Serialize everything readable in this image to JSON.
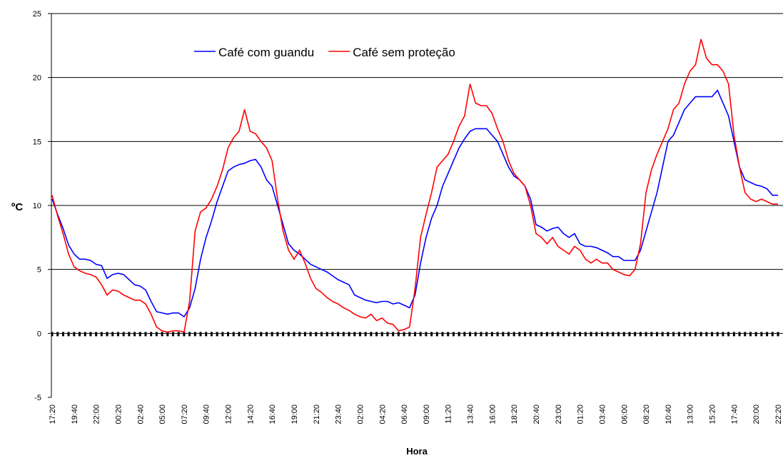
{
  "chart_data": {
    "type": "line",
    "ylabel": "ºC",
    "xlabel": "Hora",
    "ylim": [
      -5,
      25
    ],
    "yticks": [
      -5,
      0,
      5,
      10,
      15,
      20,
      25
    ],
    "grid": true,
    "legend": "top",
    "categories": [
      "17:20",
      null,
      null,
      null,
      "19:40",
      null,
      null,
      null,
      "22:00",
      null,
      null,
      null,
      "00:20",
      null,
      null,
      null,
      "02:40",
      null,
      null,
      null,
      "05:00",
      null,
      null,
      null,
      "07:20",
      null,
      null,
      null,
      "09:40",
      null,
      null,
      null,
      "12:00",
      null,
      null,
      null,
      "14:20",
      null,
      null,
      null,
      "16:40",
      null,
      null,
      null,
      "19:00",
      null,
      null,
      null,
      "21:20",
      null,
      null,
      null,
      "23:40",
      null,
      null,
      null,
      "02:00",
      null,
      null,
      null,
      "04:20",
      null,
      null,
      null,
      "06:40",
      null,
      null,
      null,
      "09:00",
      null,
      null,
      null,
      "11:20",
      null,
      null,
      null,
      "13:40",
      null,
      null,
      null,
      "16:00",
      null,
      null,
      null,
      "18:20",
      null,
      null,
      null,
      "20:40",
      null,
      null,
      null,
      "23:00",
      null,
      null,
      null,
      "01:20",
      null,
      null,
      null,
      "03:40",
      null,
      null,
      null,
      "06:00",
      null,
      null,
      null,
      "08:20",
      null,
      null,
      null,
      "10:40",
      null,
      null,
      null,
      "13:00",
      null,
      null,
      null,
      "15:20",
      null,
      null,
      null,
      "17:40",
      null,
      null,
      null,
      "20:00",
      null,
      null,
      null,
      "22:20"
    ],
    "series": [
      {
        "name": "Café com guandu",
        "color": "#0000ff",
        "values": [
          10.5,
          9.3,
          8.2,
          6.9,
          6.2,
          5.8,
          5.8,
          5.7,
          5.4,
          5.3,
          4.3,
          4.6,
          4.7,
          4.6,
          4.2,
          3.8,
          3.7,
          3.4,
          2.5,
          1.7,
          1.6,
          1.5,
          1.6,
          1.6,
          1.3,
          2.0,
          3.5,
          5.8,
          7.5,
          8.8,
          10.3,
          11.5,
          12.7,
          13.0,
          13.2,
          13.3,
          13.5,
          13.6,
          13.0,
          12.0,
          11.5,
          10.0,
          8.5,
          7.0,
          6.5,
          6.2,
          5.8,
          5.4,
          5.2,
          5.0,
          4.8,
          4.5,
          4.2,
          4.0,
          3.8,
          3.0,
          2.8,
          2.6,
          2.5,
          2.4,
          2.5,
          2.5,
          2.3,
          2.4,
          2.2,
          2.0,
          3.0,
          5.5,
          7.5,
          9.0,
          10.0,
          11.5,
          12.5,
          13.5,
          14.5,
          15.2,
          15.8,
          16.0,
          16.0,
          16.0,
          15.5,
          15.0,
          14.0,
          13.0,
          12.3,
          12.0,
          11.5,
          10.5,
          8.5,
          8.3,
          8.0,
          8.2,
          8.3,
          7.8,
          7.5,
          7.8,
          7.0,
          6.8,
          6.8,
          6.7,
          6.5,
          6.3,
          6.0,
          6.0,
          5.7,
          5.7,
          5.7,
          6.5,
          8.0,
          9.5,
          11.0,
          13.0,
          15.0,
          15.5,
          16.5,
          17.5,
          18.0,
          18.5,
          18.5,
          18.5,
          18.5,
          19.0,
          18.0,
          17.0,
          15.0,
          13.0,
          12.0,
          11.8,
          11.6,
          11.5,
          11.3,
          10.8,
          10.8
        ]
      },
      {
        "name": "Café sem proteção",
        "color": "#ff0000",
        "values": [
          10.8,
          9.2,
          7.8,
          6.2,
          5.2,
          4.9,
          4.7,
          4.6,
          4.4,
          3.8,
          3.0,
          3.4,
          3.3,
          3.0,
          2.8,
          2.6,
          2.6,
          2.3,
          1.5,
          0.5,
          0.2,
          0.1,
          0.2,
          0.2,
          0.1,
          2.5,
          8.0,
          9.5,
          9.8,
          10.5,
          11.5,
          12.8,
          14.5,
          15.3,
          15.8,
          17.5,
          15.8,
          15.6,
          15.0,
          14.5,
          13.5,
          10.5,
          8.0,
          6.5,
          5.8,
          6.5,
          5.5,
          4.3,
          3.5,
          3.2,
          2.8,
          2.5,
          2.3,
          2.0,
          1.8,
          1.5,
          1.3,
          1.2,
          1.5,
          1.0,
          1.2,
          0.8,
          0.7,
          0.2,
          0.3,
          0.5,
          3.5,
          7.5,
          9.3,
          11.0,
          13.0,
          13.5,
          14.0,
          15.0,
          16.2,
          17.0,
          19.5,
          18.0,
          17.8,
          17.8,
          17.2,
          16.0,
          15.0,
          13.5,
          12.5,
          12.0,
          11.5,
          10.0,
          7.8,
          7.5,
          7.0,
          7.5,
          6.8,
          6.5,
          6.2,
          6.8,
          6.5,
          5.8,
          5.5,
          5.8,
          5.5,
          5.5,
          5.0,
          4.8,
          4.6,
          4.5,
          5.0,
          7.0,
          11.0,
          12.8,
          14.0,
          15.0,
          16.0,
          17.5,
          18.0,
          19.5,
          20.5,
          21.0,
          23.0,
          21.5,
          21.0,
          21.0,
          20.5,
          19.5,
          15.5,
          13.0,
          11.0,
          10.5,
          10.3,
          10.5,
          10.3,
          10.1,
          10.1
        ]
      }
    ]
  }
}
